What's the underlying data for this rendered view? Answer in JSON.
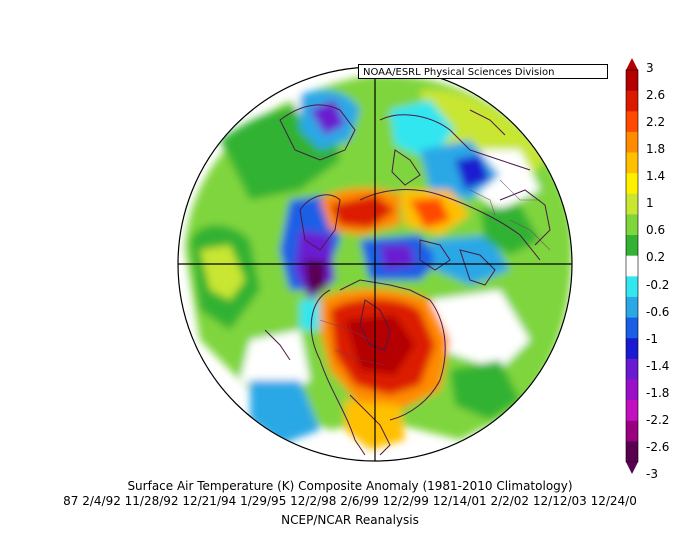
{
  "credit": "NOAA/ESRL Physical Sciences Division",
  "title": "Surface Air Temperature (K) Composite Anomaly (1981-2010 Climatology)",
  "dates": "87 2/4/92 11/28/92 12/21/94 1/29/95 12/2/98 2/6/99 12/2/99 12/14/01 2/2/02 12/12/03 12/24/0",
  "source": "NCEP/NCAR Reanalysis",
  "colorbar": {
    "labels": [
      "3",
      "2.6",
      "2.2",
      "1.8",
      "1.4",
      "1",
      "0.6",
      "0.2",
      "-0.2",
      "-0.6",
      "-1",
      "-1.4",
      "-1.8",
      "-2.2",
      "-2.6",
      "-3"
    ],
    "colors": [
      "#b40000",
      "#dc1a00",
      "#ff4a00",
      "#ff8c00",
      "#ffc000",
      "#fff000",
      "#c8e632",
      "#7fd53c",
      "#33b233",
      "#ffffff",
      "#33e6f0",
      "#2aa8e6",
      "#1a5ee6",
      "#1a1ad0",
      "#6a1ad0",
      "#9a10c8",
      "#c010c0",
      "#9a0080",
      "#5a0050"
    ]
  },
  "map": {
    "projection": "north-polar-stereographic",
    "anomaly_regions": [
      {
        "region": "North America interior",
        "level": "strong-warm"
      },
      {
        "region": "Eastern Siberia",
        "level": "strong-warm"
      },
      {
        "region": "Alaska / Bering",
        "level": "cold"
      },
      {
        "region": "Greenland",
        "level": "cold"
      },
      {
        "region": "North Pacific",
        "level": "weak-warm"
      },
      {
        "region": "Eurasia",
        "level": "mixed"
      }
    ]
  }
}
